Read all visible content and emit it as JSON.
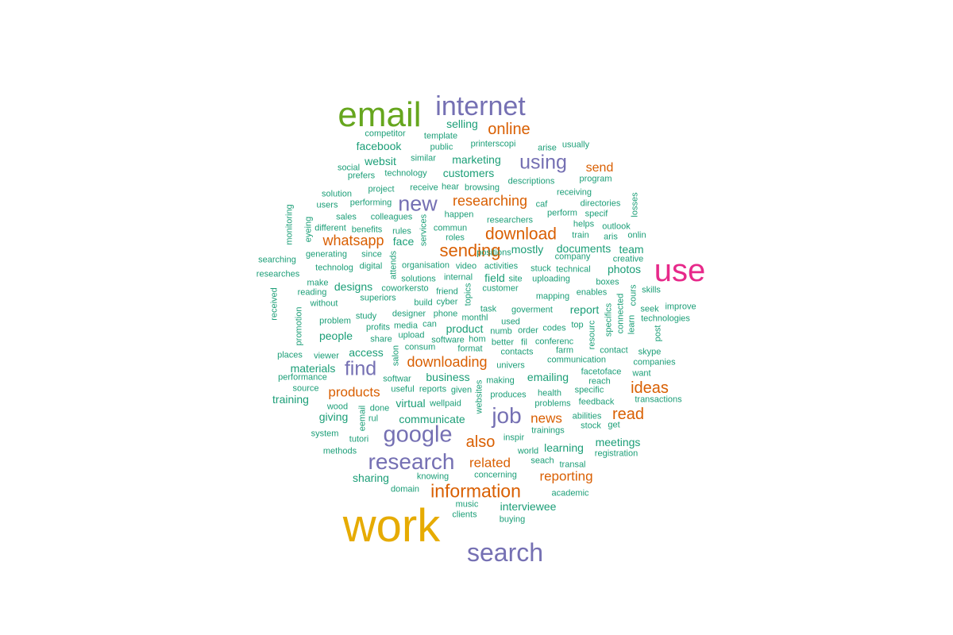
{
  "palette": {
    "xl": "#e6ab02",
    "green": "#66a61e",
    "pink": "#e7298a",
    "purple": "#7570b3",
    "orange": "#d95f02",
    "teal": "#1b9e77"
  },
  "words": [
    {
      "t": "work",
      "c": "xl",
      "s": 58
    },
    {
      "t": "email",
      "c": "green",
      "s": 44
    },
    {
      "t": "use",
      "c": "pink",
      "s": 40
    },
    {
      "t": "internet",
      "c": "purple",
      "s": 34
    },
    {
      "t": "search",
      "c": "purple",
      "s": 32
    },
    {
      "t": "google",
      "c": "purple",
      "s": 29
    },
    {
      "t": "research",
      "c": "purple",
      "s": 28
    },
    {
      "t": "job",
      "c": "purple",
      "s": 28
    },
    {
      "t": "new",
      "c": "purple",
      "s": 27
    },
    {
      "t": "using",
      "c": "purple",
      "s": 25
    },
    {
      "t": "find",
      "c": "purple",
      "s": 25
    },
    {
      "t": "information",
      "c": "orange",
      "s": 23
    },
    {
      "t": "sending",
      "c": "orange",
      "s": 22
    },
    {
      "t": "download",
      "c": "orange",
      "s": 21
    },
    {
      "t": "online",
      "c": "orange",
      "s": 20
    },
    {
      "t": "ideas",
      "c": "orange",
      "s": 20
    },
    {
      "t": "also",
      "c": "orange",
      "s": 20
    },
    {
      "t": "read",
      "c": "orange",
      "s": 20
    },
    {
      "t": "downloading",
      "c": "orange",
      "s": 18
    },
    {
      "t": "researching",
      "c": "orange",
      "s": 18
    },
    {
      "t": "whatsapp",
      "c": "orange",
      "s": 18
    },
    {
      "t": "products",
      "c": "orange",
      "s": 17
    },
    {
      "t": "reporting",
      "c": "orange",
      "s": 17
    },
    {
      "t": "related",
      "c": "orange",
      "s": 17
    },
    {
      "t": "news",
      "c": "orange",
      "s": 17
    },
    {
      "t": "send",
      "c": "orange",
      "s": 16
    },
    {
      "t": "selling",
      "c": "teal",
      "s": 14
    },
    {
      "t": "facebook",
      "c": "teal",
      "s": 14
    },
    {
      "t": "websit",
      "c": "teal",
      "s": 14
    },
    {
      "t": "marketing",
      "c": "teal",
      "s": 14
    },
    {
      "t": "customers",
      "c": "teal",
      "s": 14
    },
    {
      "t": "face",
      "c": "teal",
      "s": 14
    },
    {
      "t": "mostly",
      "c": "teal",
      "s": 14
    },
    {
      "t": "documents",
      "c": "teal",
      "s": 14
    },
    {
      "t": "team",
      "c": "teal",
      "s": 14
    },
    {
      "t": "photos",
      "c": "teal",
      "s": 14
    },
    {
      "t": "designs",
      "c": "teal",
      "s": 14
    },
    {
      "t": "field",
      "c": "teal",
      "s": 14
    },
    {
      "t": "report",
      "c": "teal",
      "s": 14
    },
    {
      "t": "people",
      "c": "teal",
      "s": 14
    },
    {
      "t": "product",
      "c": "teal",
      "s": 14
    },
    {
      "t": "access",
      "c": "teal",
      "s": 14
    },
    {
      "t": "materials",
      "c": "teal",
      "s": 14
    },
    {
      "t": "business",
      "c": "teal",
      "s": 14
    },
    {
      "t": "emailing",
      "c": "teal",
      "s": 14
    },
    {
      "t": "training",
      "c": "teal",
      "s": 14
    },
    {
      "t": "virtual",
      "c": "teal",
      "s": 14
    },
    {
      "t": "communicate",
      "c": "teal",
      "s": 14
    },
    {
      "t": "giving",
      "c": "teal",
      "s": 14
    },
    {
      "t": "learning",
      "c": "teal",
      "s": 14
    },
    {
      "t": "meetings",
      "c": "teal",
      "s": 14
    },
    {
      "t": "sharing",
      "c": "teal",
      "s": 14
    },
    {
      "t": "interviewee",
      "c": "teal",
      "s": 14
    },
    {
      "t": "competitor",
      "c": "teal",
      "s": 11
    },
    {
      "t": "template",
      "c": "teal",
      "s": 11
    },
    {
      "t": "public",
      "c": "teal",
      "s": 11
    },
    {
      "t": "printerscopi",
      "c": "teal",
      "s": 11
    },
    {
      "t": "arise",
      "c": "teal",
      "s": 11
    },
    {
      "t": "usually",
      "c": "teal",
      "s": 11
    },
    {
      "t": "similar",
      "c": "teal",
      "s": 11
    },
    {
      "t": "social",
      "c": "teal",
      "s": 11
    },
    {
      "t": "prefers",
      "c": "teal",
      "s": 11
    },
    {
      "t": "technology",
      "c": "teal",
      "s": 11
    },
    {
      "t": "descriptions",
      "c": "teal",
      "s": 11
    },
    {
      "t": "program",
      "c": "teal",
      "s": 11
    },
    {
      "t": "project",
      "c": "teal",
      "s": 11
    },
    {
      "t": "receive",
      "c": "teal",
      "s": 11
    },
    {
      "t": "hear",
      "c": "teal",
      "s": 11
    },
    {
      "t": "browsing",
      "c": "teal",
      "s": 11
    },
    {
      "t": "receiving",
      "c": "teal",
      "s": 11
    },
    {
      "t": "solution",
      "c": "teal",
      "s": 11
    },
    {
      "t": "users",
      "c": "teal",
      "s": 11
    },
    {
      "t": "performing",
      "c": "teal",
      "s": 11
    },
    {
      "t": "caf",
      "c": "teal",
      "s": 11
    },
    {
      "t": "directories",
      "c": "teal",
      "s": 11
    },
    {
      "t": "sales",
      "c": "teal",
      "s": 11
    },
    {
      "t": "colleagues",
      "c": "teal",
      "s": 11
    },
    {
      "t": "happen",
      "c": "teal",
      "s": 11
    },
    {
      "t": "perform",
      "c": "teal",
      "s": 11
    },
    {
      "t": "specif",
      "c": "teal",
      "s": 11
    },
    {
      "t": "researchers",
      "c": "teal",
      "s": 11
    },
    {
      "t": "different",
      "c": "teal",
      "s": 11
    },
    {
      "t": "benefits",
      "c": "teal",
      "s": 11
    },
    {
      "t": "rules",
      "c": "teal",
      "s": 11
    },
    {
      "t": "commun",
      "c": "teal",
      "s": 11
    },
    {
      "t": "helps",
      "c": "teal",
      "s": 11
    },
    {
      "t": "outlook",
      "c": "teal",
      "s": 11
    },
    {
      "t": "roles",
      "c": "teal",
      "s": 11
    },
    {
      "t": "positions",
      "c": "teal",
      "s": 11
    },
    {
      "t": "train",
      "c": "teal",
      "s": 11
    },
    {
      "t": "aris",
      "c": "teal",
      "s": 11
    },
    {
      "t": "onlin",
      "c": "teal",
      "s": 11
    },
    {
      "t": "generating",
      "c": "teal",
      "s": 11
    },
    {
      "t": "since",
      "c": "teal",
      "s": 11
    },
    {
      "t": "company",
      "c": "teal",
      "s": 11
    },
    {
      "t": "creative",
      "c": "teal",
      "s": 11
    },
    {
      "t": "searching",
      "c": "teal",
      "s": 11
    },
    {
      "t": "technolog",
      "c": "teal",
      "s": 11
    },
    {
      "t": "digital",
      "c": "teal",
      "s": 11
    },
    {
      "t": "organisation",
      "c": "teal",
      "s": 11
    },
    {
      "t": "video",
      "c": "teal",
      "s": 11
    },
    {
      "t": "activities",
      "c": "teal",
      "s": 11
    },
    {
      "t": "stuck",
      "c": "teal",
      "s": 11
    },
    {
      "t": "technical",
      "c": "teal",
      "s": 11
    },
    {
      "t": "researches",
      "c": "teal",
      "s": 11
    },
    {
      "t": "solutions",
      "c": "teal",
      "s": 11
    },
    {
      "t": "internal",
      "c": "teal",
      "s": 11
    },
    {
      "t": "site",
      "c": "teal",
      "s": 11
    },
    {
      "t": "uploading",
      "c": "teal",
      "s": 11
    },
    {
      "t": "boxes",
      "c": "teal",
      "s": 11
    },
    {
      "t": "make",
      "c": "teal",
      "s": 11
    },
    {
      "t": "coworkersto",
      "c": "teal",
      "s": 11
    },
    {
      "t": "customer",
      "c": "teal",
      "s": 11
    },
    {
      "t": "skills",
      "c": "teal",
      "s": 11
    },
    {
      "t": "reading",
      "c": "teal",
      "s": 11
    },
    {
      "t": "friend",
      "c": "teal",
      "s": 11
    },
    {
      "t": "enables",
      "c": "teal",
      "s": 11
    },
    {
      "t": "superiors",
      "c": "teal",
      "s": 11
    },
    {
      "t": "mapping",
      "c": "teal",
      "s": 11
    },
    {
      "t": "without",
      "c": "teal",
      "s": 11
    },
    {
      "t": "build",
      "c": "teal",
      "s": 11
    },
    {
      "t": "cyber",
      "c": "teal",
      "s": 11
    },
    {
      "t": "seek",
      "c": "teal",
      "s": 11
    },
    {
      "t": "improve",
      "c": "teal",
      "s": 11
    },
    {
      "t": "task",
      "c": "teal",
      "s": 11
    },
    {
      "t": "goverment",
      "c": "teal",
      "s": 11
    },
    {
      "t": "designer",
      "c": "teal",
      "s": 11
    },
    {
      "t": "phone",
      "c": "teal",
      "s": 11
    },
    {
      "t": "monthl",
      "c": "teal",
      "s": 11
    },
    {
      "t": "technologies",
      "c": "teal",
      "s": 11
    },
    {
      "t": "problem",
      "c": "teal",
      "s": 11
    },
    {
      "t": "study",
      "c": "teal",
      "s": 11
    },
    {
      "t": "media",
      "c": "teal",
      "s": 11
    },
    {
      "t": "can",
      "c": "teal",
      "s": 11
    },
    {
      "t": "used",
      "c": "teal",
      "s": 11
    },
    {
      "t": "top",
      "c": "teal",
      "s": 11
    },
    {
      "t": "profits",
      "c": "teal",
      "s": 11
    },
    {
      "t": "numb",
      "c": "teal",
      "s": 11
    },
    {
      "t": "order",
      "c": "teal",
      "s": 11
    },
    {
      "t": "codes",
      "c": "teal",
      "s": 11
    },
    {
      "t": "share",
      "c": "teal",
      "s": 11
    },
    {
      "t": "upload",
      "c": "teal",
      "s": 11
    },
    {
      "t": "software",
      "c": "teal",
      "s": 11
    },
    {
      "t": "hom",
      "c": "teal",
      "s": 11
    },
    {
      "t": "better",
      "c": "teal",
      "s": 11
    },
    {
      "t": "fil",
      "c": "teal",
      "s": 11
    },
    {
      "t": "conferenc",
      "c": "teal",
      "s": 11
    },
    {
      "t": "consum",
      "c": "teal",
      "s": 11
    },
    {
      "t": "format",
      "c": "teal",
      "s": 11
    },
    {
      "t": "contacts",
      "c": "teal",
      "s": 11
    },
    {
      "t": "farm",
      "c": "teal",
      "s": 11
    },
    {
      "t": "contact",
      "c": "teal",
      "s": 11
    },
    {
      "t": "skype",
      "c": "teal",
      "s": 11
    },
    {
      "t": "places",
      "c": "teal",
      "s": 11
    },
    {
      "t": "viewer",
      "c": "teal",
      "s": 11
    },
    {
      "t": "communication",
      "c": "teal",
      "s": 11
    },
    {
      "t": "companies",
      "c": "teal",
      "s": 11
    },
    {
      "t": "univers",
      "c": "teal",
      "s": 11
    },
    {
      "t": "facetoface",
      "c": "teal",
      "s": 11
    },
    {
      "t": "want",
      "c": "teal",
      "s": 11
    },
    {
      "t": "performance",
      "c": "teal",
      "s": 11
    },
    {
      "t": "softwar",
      "c": "teal",
      "s": 11
    },
    {
      "t": "making",
      "c": "teal",
      "s": 11
    },
    {
      "t": "reach",
      "c": "teal",
      "s": 11
    },
    {
      "t": "source",
      "c": "teal",
      "s": 11
    },
    {
      "t": "useful",
      "c": "teal",
      "s": 11
    },
    {
      "t": "reports",
      "c": "teal",
      "s": 11
    },
    {
      "t": "given",
      "c": "teal",
      "s": 11
    },
    {
      "t": "specific",
      "c": "teal",
      "s": 11
    },
    {
      "t": "produces",
      "c": "teal",
      "s": 11
    },
    {
      "t": "health",
      "c": "teal",
      "s": 11
    },
    {
      "t": "wellpaid",
      "c": "teal",
      "s": 11
    },
    {
      "t": "feedback",
      "c": "teal",
      "s": 11
    },
    {
      "t": "transactions",
      "c": "teal",
      "s": 11
    },
    {
      "t": "wood",
      "c": "teal",
      "s": 11
    },
    {
      "t": "done",
      "c": "teal",
      "s": 11
    },
    {
      "t": "problems",
      "c": "teal",
      "s": 11
    },
    {
      "t": "rul",
      "c": "teal",
      "s": 11
    },
    {
      "t": "abilities",
      "c": "teal",
      "s": 11
    },
    {
      "t": "stock",
      "c": "teal",
      "s": 11
    },
    {
      "t": "get",
      "c": "teal",
      "s": 11
    },
    {
      "t": "trainings",
      "c": "teal",
      "s": 11
    },
    {
      "t": "system",
      "c": "teal",
      "s": 11
    },
    {
      "t": "tutori",
      "c": "teal",
      "s": 11
    },
    {
      "t": "inspir",
      "c": "teal",
      "s": 11
    },
    {
      "t": "methods",
      "c": "teal",
      "s": 11
    },
    {
      "t": "world",
      "c": "teal",
      "s": 11
    },
    {
      "t": "registration",
      "c": "teal",
      "s": 11
    },
    {
      "t": "seach",
      "c": "teal",
      "s": 11
    },
    {
      "t": "transal",
      "c": "teal",
      "s": 11
    },
    {
      "t": "knowing",
      "c": "teal",
      "s": 11
    },
    {
      "t": "concerning",
      "c": "teal",
      "s": 11
    },
    {
      "t": "domain",
      "c": "teal",
      "s": 11
    },
    {
      "t": "academic",
      "c": "teal",
      "s": 11
    },
    {
      "t": "music",
      "c": "teal",
      "s": 11
    },
    {
      "t": "clients",
      "c": "teal",
      "s": 11
    },
    {
      "t": "buying",
      "c": "teal",
      "s": 11
    },
    {
      "t": "losses",
      "c": "teal",
      "s": 11,
      "v": 1
    },
    {
      "t": "monitoring",
      "c": "teal",
      "s": 11,
      "v": 1
    },
    {
      "t": "eyeing",
      "c": "teal",
      "s": 11,
      "v": 1
    },
    {
      "t": "services",
      "c": "teal",
      "s": 11,
      "v": 1
    },
    {
      "t": "attends",
      "c": "teal",
      "s": 11,
      "v": 1
    },
    {
      "t": "topics",
      "c": "teal",
      "s": 11,
      "v": 1
    },
    {
      "t": "received",
      "c": "teal",
      "s": 11,
      "v": 1
    },
    {
      "t": "promotion",
      "c": "teal",
      "s": 11,
      "v": 1
    },
    {
      "t": "connected",
      "c": "teal",
      "s": 11,
      "v": 1
    },
    {
      "t": "specifics",
      "c": "teal",
      "s": 11,
      "v": 1
    },
    {
      "t": "cours",
      "c": "teal",
      "s": 11,
      "v": 1
    },
    {
      "t": "learn",
      "c": "teal",
      "s": 11,
      "v": 1
    },
    {
      "t": "resourc",
      "c": "teal",
      "s": 11,
      "v": 1
    },
    {
      "t": "post",
      "c": "teal",
      "s": 11,
      "v": 1
    },
    {
      "t": "salon",
      "c": "teal",
      "s": 11,
      "v": 1
    },
    {
      "t": "websites",
      "c": "teal",
      "s": 11,
      "v": 1
    },
    {
      "t": "eemail",
      "c": "teal",
      "s": 11,
      "v": 1
    }
  ]
}
